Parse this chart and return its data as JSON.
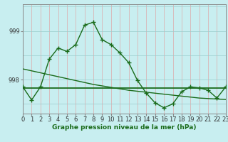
{
  "xlabel": "Graphe pression niveau de la mer (hPa)",
  "x_ticks": [
    0,
    1,
    2,
    3,
    4,
    5,
    6,
    7,
    8,
    9,
    10,
    11,
    12,
    13,
    14,
    15,
    16,
    17,
    18,
    19,
    20,
    21,
    22,
    23
  ],
  "x_tick_labels": [
    "0",
    "1",
    "2",
    "3",
    "4",
    "5",
    "6",
    "7",
    "8",
    "9",
    "10",
    "11",
    "12",
    "13",
    "14",
    "15",
    "16",
    "17",
    "18",
    "19",
    "20",
    "21",
    "22",
    "23"
  ],
  "y_ticks": [
    998,
    999
  ],
  "ylim": [
    997.3,
    999.55
  ],
  "xlim": [
    0,
    23
  ],
  "background_color": "#c8eef0",
  "grid_color": "#99cccc",
  "grid_color_v": "#ddaaaa",
  "line_color": "#1a6b1a",
  "flat_line_y": 997.83,
  "pressure_data": [
    997.85,
    997.58,
    997.85,
    998.42,
    998.65,
    998.58,
    998.72,
    999.12,
    999.18,
    998.82,
    998.72,
    998.55,
    998.35,
    997.98,
    997.72,
    997.52,
    997.42,
    997.5,
    997.75,
    997.85,
    997.83,
    997.78,
    997.62,
    997.85
  ],
  "trend_data": [
    998.22,
    998.18,
    998.14,
    998.1,
    998.06,
    998.02,
    997.98,
    997.94,
    997.9,
    997.87,
    997.84,
    997.81,
    997.78,
    997.76,
    997.74,
    997.72,
    997.7,
    997.68,
    997.66,
    997.64,
    997.62,
    997.61,
    997.6,
    997.59
  ],
  "marker_size": 4,
  "linewidth": 1.0,
  "xlabel_fontsize": 6.5,
  "tick_fontsize": 6
}
